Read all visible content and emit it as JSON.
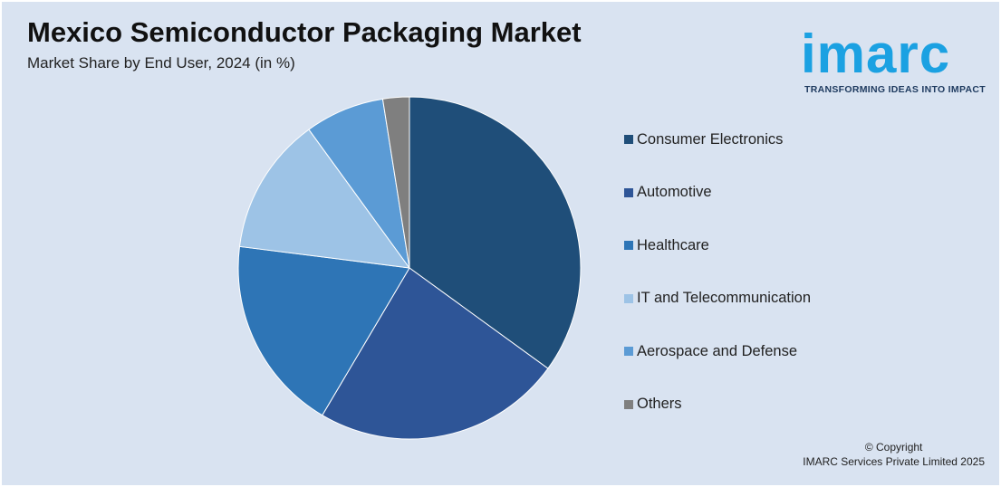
{
  "header": {
    "title": "Mexico Semiconductor Packaging Market",
    "subtitle": "Market Share by End User, 2024 (in %)"
  },
  "logo": {
    "wordmark": "imarc",
    "tagline": "TRANSFORMING IDEAS INTO IMPACT",
    "color": "#1ba1e2"
  },
  "chart_data": {
    "type": "pie",
    "title": "Mexico Semiconductor Packaging Market",
    "subtitle": "Market Share by End User, 2024 (in %)",
    "legend_position": "right",
    "categories": [
      "Consumer Electronics",
      "Automotive",
      "Healthcare",
      "IT and Telecommunication",
      "Aerospace and Defense",
      "Others"
    ],
    "values": [
      35,
      23.5,
      18.5,
      13,
      7.5,
      2.5
    ],
    "colors": [
      "#1f4e79",
      "#2e5597",
      "#2e75b6",
      "#9dc3e6",
      "#5b9bd5",
      "#7f7f7f"
    ]
  },
  "footer": {
    "copyright_line1": "© Copyright",
    "copyright_line2": "IMARC Services Private Limited 2025"
  }
}
